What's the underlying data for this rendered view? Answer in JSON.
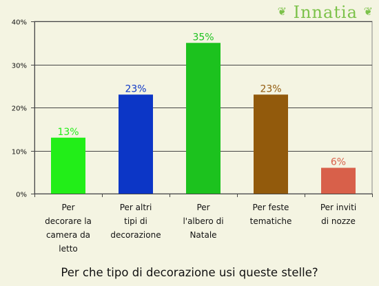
{
  "brand": {
    "logo_text": "Innatia",
    "leaf_left": "❦",
    "leaf_right": "❦"
  },
  "chart_data": {
    "type": "bar",
    "title": "Per che tipo di decorazione usi queste stelle?",
    "categories": [
      "Per decorare la camera da letto",
      "Per altri tipi di decorazione",
      "Per l'albero di Natale",
      "Per feste tematiche",
      "Per inviti di nozze"
    ],
    "category_lines": [
      [
        "Per",
        "decorare la",
        "camera da",
        "letto"
      ],
      [
        "Per altri",
        "tipi di",
        "decorazione"
      ],
      [
        "Per",
        "l'albero di",
        "Natale"
      ],
      [
        "Per feste",
        "tematiche"
      ],
      [
        "Per inviti",
        "di nozze"
      ]
    ],
    "values": [
      13,
      23,
      35,
      23,
      6
    ],
    "data_labels": [
      "13%",
      "23%",
      "35%",
      "23%",
      "6%"
    ],
    "colors": [
      "#22ee18",
      "#0c36c6",
      "#1cc21e",
      "#925a0c",
      "#d8604a"
    ],
    "label_colors": [
      "#22ee18",
      "#0c36c6",
      "#1cc21e",
      "#925a0c",
      "#d8604a"
    ],
    "y_ticks": [
      0,
      10,
      20,
      30,
      40
    ],
    "y_tick_labels": [
      "0%",
      "10%",
      "20%",
      "30%",
      "40%"
    ],
    "ylim": [
      0,
      40
    ],
    "grid": true,
    "xlabel": "",
    "ylabel": ""
  }
}
